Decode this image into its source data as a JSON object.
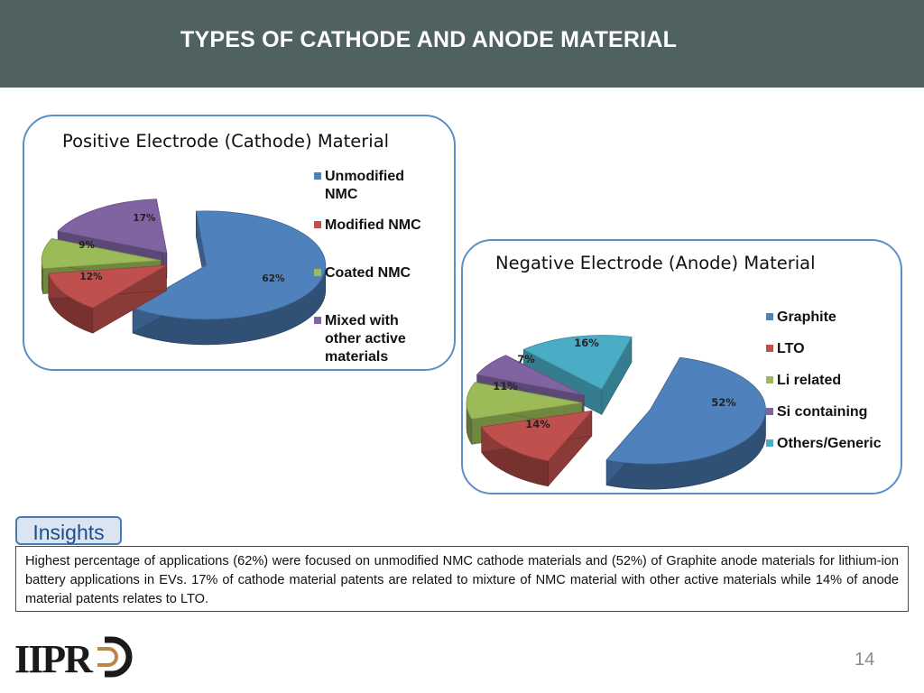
{
  "header": {
    "title": "TYPES OF CATHODE AND ANODE MATERIAL"
  },
  "chart_data": [
    {
      "type": "pie",
      "title": "Positive Electrode (Cathode) Material",
      "categories": [
        "Unmodified NMC",
        "Modified NMC",
        "Coated NMC",
        "Mixed with other active materials"
      ],
      "legend_labels": [
        "Unmodified\nNMC",
        "Modified NMC",
        "Coated NMC",
        "Mixed with\nother active\nmaterials"
      ],
      "values": [
        62,
        12,
        9,
        17
      ],
      "data_labels": [
        "62%",
        "12%",
        "9%",
        "17%"
      ],
      "colors": [
        "#4f81bd",
        "#c0504d",
        "#9bbb59",
        "#8064a2"
      ],
      "legend_position": "right"
    },
    {
      "type": "pie",
      "title": "Negative Electrode (Anode) Material",
      "categories": [
        "Graphite",
        "LTO",
        "Li related",
        "Si containing",
        "Others/Generic"
      ],
      "legend_labels": [
        "Graphite",
        "LTO",
        "Li related",
        "Si containing",
        "Others/Generic"
      ],
      "values": [
        52,
        14,
        11,
        7,
        16
      ],
      "data_labels": [
        "52%",
        "14%",
        "11%",
        "7%",
        "16%"
      ],
      "colors": [
        "#4f81bd",
        "#c0504d",
        "#9bbb59",
        "#8064a2",
        "#4bacc6"
      ],
      "legend_position": "right"
    }
  ],
  "insights": {
    "label": "Insights",
    "text": "Highest percentage of applications (62%) were focused on unmodified NMC cathode materials and (52%) of Graphite anode materials for lithium-ion battery applications in EVs. 17% of cathode material patents are related to mixture of NMC material with other active materials while 14% of anode material patents relates to LTO."
  },
  "logo": {
    "text": "IIPRD"
  },
  "footer": {
    "page_number": "14"
  }
}
